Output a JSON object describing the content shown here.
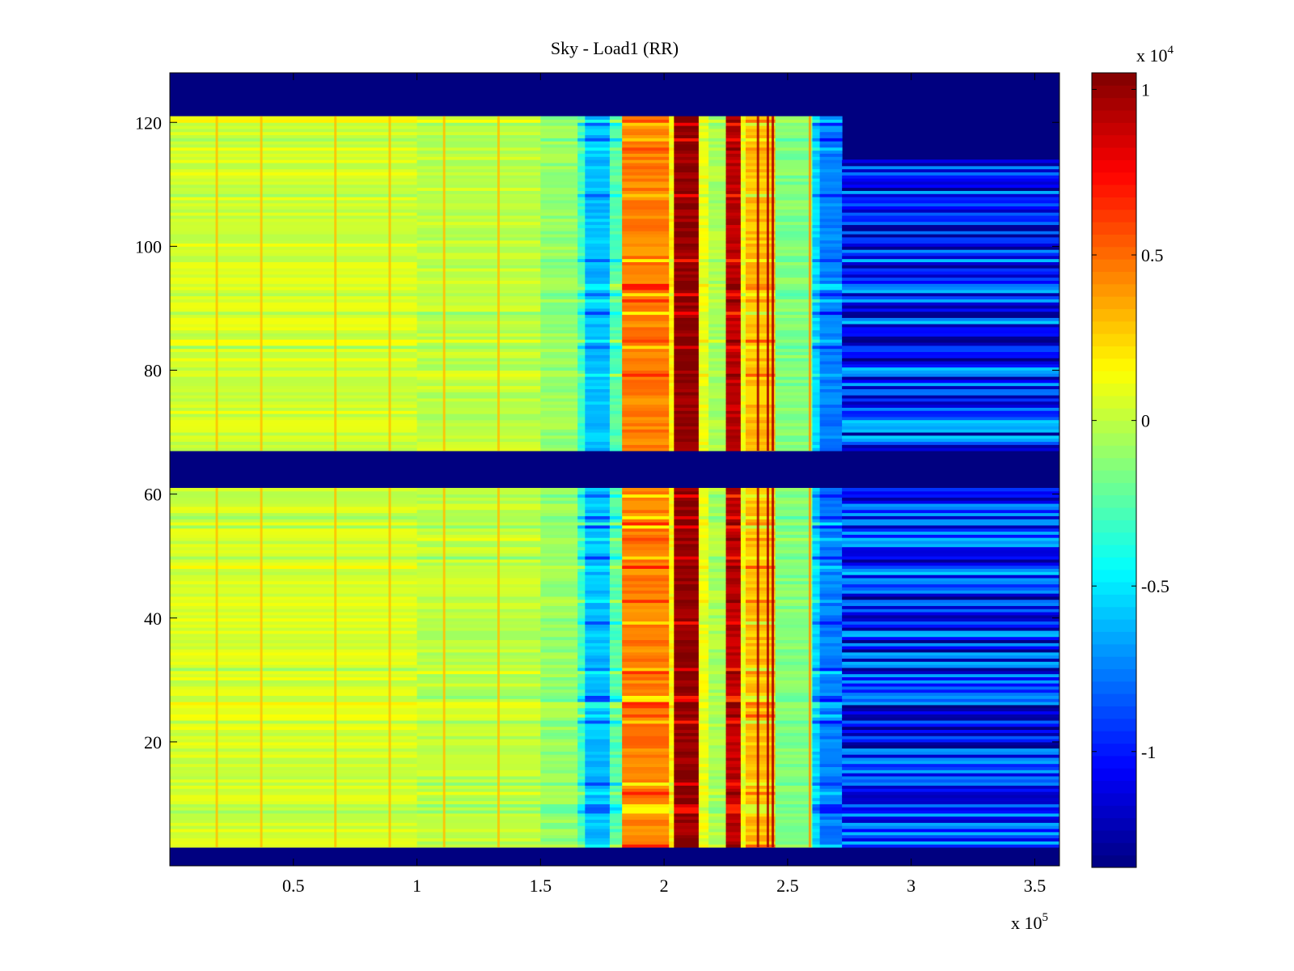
{
  "chart_data": {
    "type": "heatmap",
    "title": "Sky - Load1 (RR)",
    "xlabel": "",
    "ylabel": "",
    "x_multiplier": "x 10",
    "x_exponent": "5",
    "xlim": [
      0,
      3.6
    ],
    "ylim": [
      0,
      128
    ],
    "x_ticks": [
      0.5,
      1,
      1.5,
      2,
      2.5,
      3,
      3.5
    ],
    "x_tick_labels": [
      "0.5",
      "1",
      "1.5",
      "2",
      "2.5",
      "3",
      "3.5"
    ],
    "y_ticks": [
      20,
      40,
      60,
      80,
      100,
      120
    ],
    "y_tick_labels": [
      "20",
      "40",
      "60",
      "80",
      "100",
      "120"
    ],
    "colormap": "jet",
    "colorbar": {
      "multiplier": "x 10",
      "exponent": "4",
      "clim": [
        -1.35,
        1.05
      ],
      "ticks": [
        -1,
        -0.5,
        0,
        0.5,
        1
      ],
      "tick_labels": [
        "-1",
        "-0.5",
        "0",
        "0.5",
        "1"
      ]
    },
    "row_blocks": [
      {
        "y": [
          0,
          3
        ],
        "state": "empty"
      },
      {
        "y": [
          3,
          61
        ],
        "state": "data"
      },
      {
        "y": [
          61,
          67
        ],
        "state": "empty"
      },
      {
        "y": [
          67,
          121
        ],
        "state": "data"
      },
      {
        "y": [
          121,
          128
        ],
        "state": "empty"
      }
    ],
    "right_region": {
      "x": [
        2.72,
        3.6
      ],
      "y_top_data": 114,
      "value_range": [
        -1.35,
        -0.55
      ]
    },
    "column_profile": [
      {
        "x": [
          0.0,
          1.0
        ],
        "value": 0.05
      },
      {
        "x": [
          1.0,
          1.5
        ],
        "value": 0.0
      },
      {
        "x": [
          1.5,
          1.65
        ],
        "value": -0.1
      },
      {
        "x": [
          1.65,
          1.68
        ],
        "value": -0.3
      },
      {
        "x": [
          1.68,
          1.78
        ],
        "value": -0.6
      },
      {
        "x": [
          1.78,
          1.83
        ],
        "value": -0.25
      },
      {
        "x": [
          1.83,
          2.02
        ],
        "value": 0.45
      },
      {
        "x": [
          2.02,
          2.04
        ],
        "value": 0.15
      },
      {
        "x": [
          2.04,
          2.14
        ],
        "value": 1.0
      },
      {
        "x": [
          2.14,
          2.18
        ],
        "value": 0.1
      },
      {
        "x": [
          2.18,
          2.25
        ],
        "value": -0.05
      },
      {
        "x": [
          2.25,
          2.31
        ],
        "value": 0.9
      },
      {
        "x": [
          2.31,
          2.33
        ],
        "value": 0.1
      },
      {
        "x": [
          2.33,
          2.45
        ],
        "value": 0.3
      },
      {
        "x": [
          2.45,
          2.6
        ],
        "value": -0.15
      },
      {
        "x": [
          2.6,
          2.63
        ],
        "value": -0.55
      },
      {
        "x": [
          2.63,
          2.72
        ],
        "value": -0.75
      }
    ],
    "streaks": [
      {
        "x": 0.19,
        "value": 0.3
      },
      {
        "x": 0.37,
        "value": 0.3
      },
      {
        "x": 0.67,
        "value": 0.3
      },
      {
        "x": 0.89,
        "value": 0.3
      },
      {
        "x": 1.11,
        "value": 0.3
      },
      {
        "x": 1.33,
        "value": 0.3
      },
      {
        "x": 2.38,
        "value": 0.95
      },
      {
        "x": 2.42,
        "value": 0.95
      },
      {
        "x": 2.44,
        "value": 0.95
      },
      {
        "x": 2.59,
        "value": 0.4
      }
    ]
  }
}
